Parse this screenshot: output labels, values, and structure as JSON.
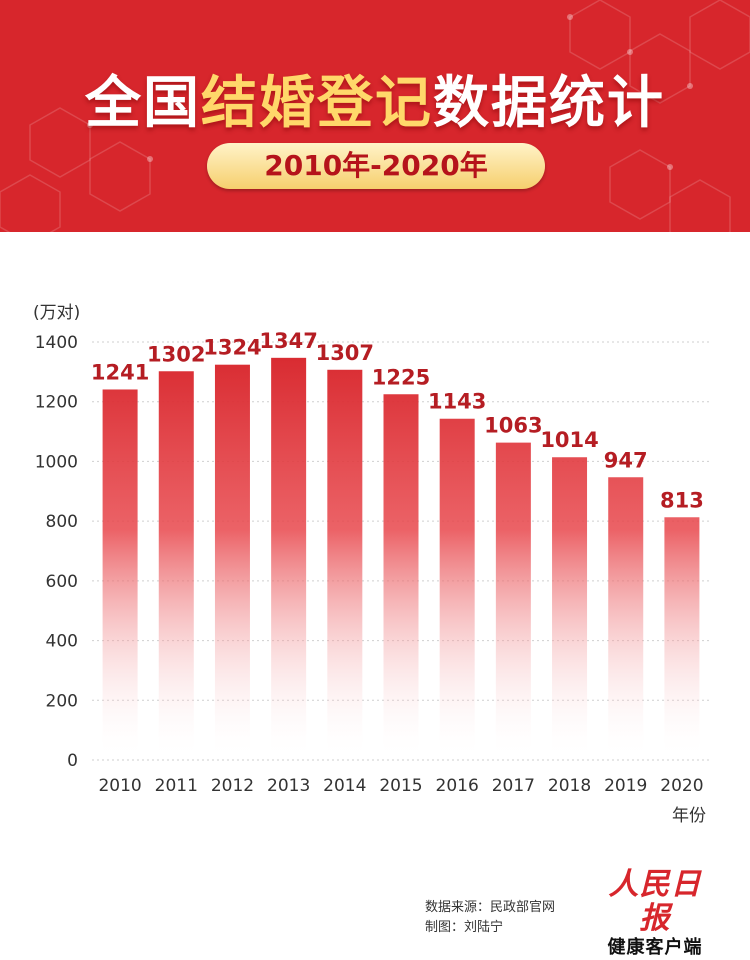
{
  "header": {
    "title_prefix": "全国",
    "title_highlight": "结婚登记",
    "title_suffix": "数据统计",
    "date_range": "2010年-2020年"
  },
  "colors": {
    "header_red": "#d7262c",
    "title_highlight": "#ffd86a",
    "bar_top": "#d7262c",
    "data_label": "#b51d23"
  },
  "chart_data": {
    "type": "bar",
    "categories": [
      "2010",
      "2011",
      "2012",
      "2013",
      "2014",
      "2015",
      "2016",
      "2017",
      "2018",
      "2019",
      "2020"
    ],
    "values": [
      1241,
      1302,
      1324,
      1347,
      1307,
      1225,
      1143,
      1063,
      1014,
      947,
      813
    ],
    "ylabel": "(万对)",
    "xlabel": "年份",
    "ylim": [
      0,
      1400
    ],
    "yticks": [
      0,
      200,
      400,
      600,
      800,
      1000,
      1200,
      1400
    ],
    "grid": true,
    "data_labels": true
  },
  "footer": {
    "source": "数据来源：民政部官网",
    "maker": "制图：刘陆宁",
    "logo_top": "人民日报",
    "logo_bottom": "健康客户端"
  }
}
